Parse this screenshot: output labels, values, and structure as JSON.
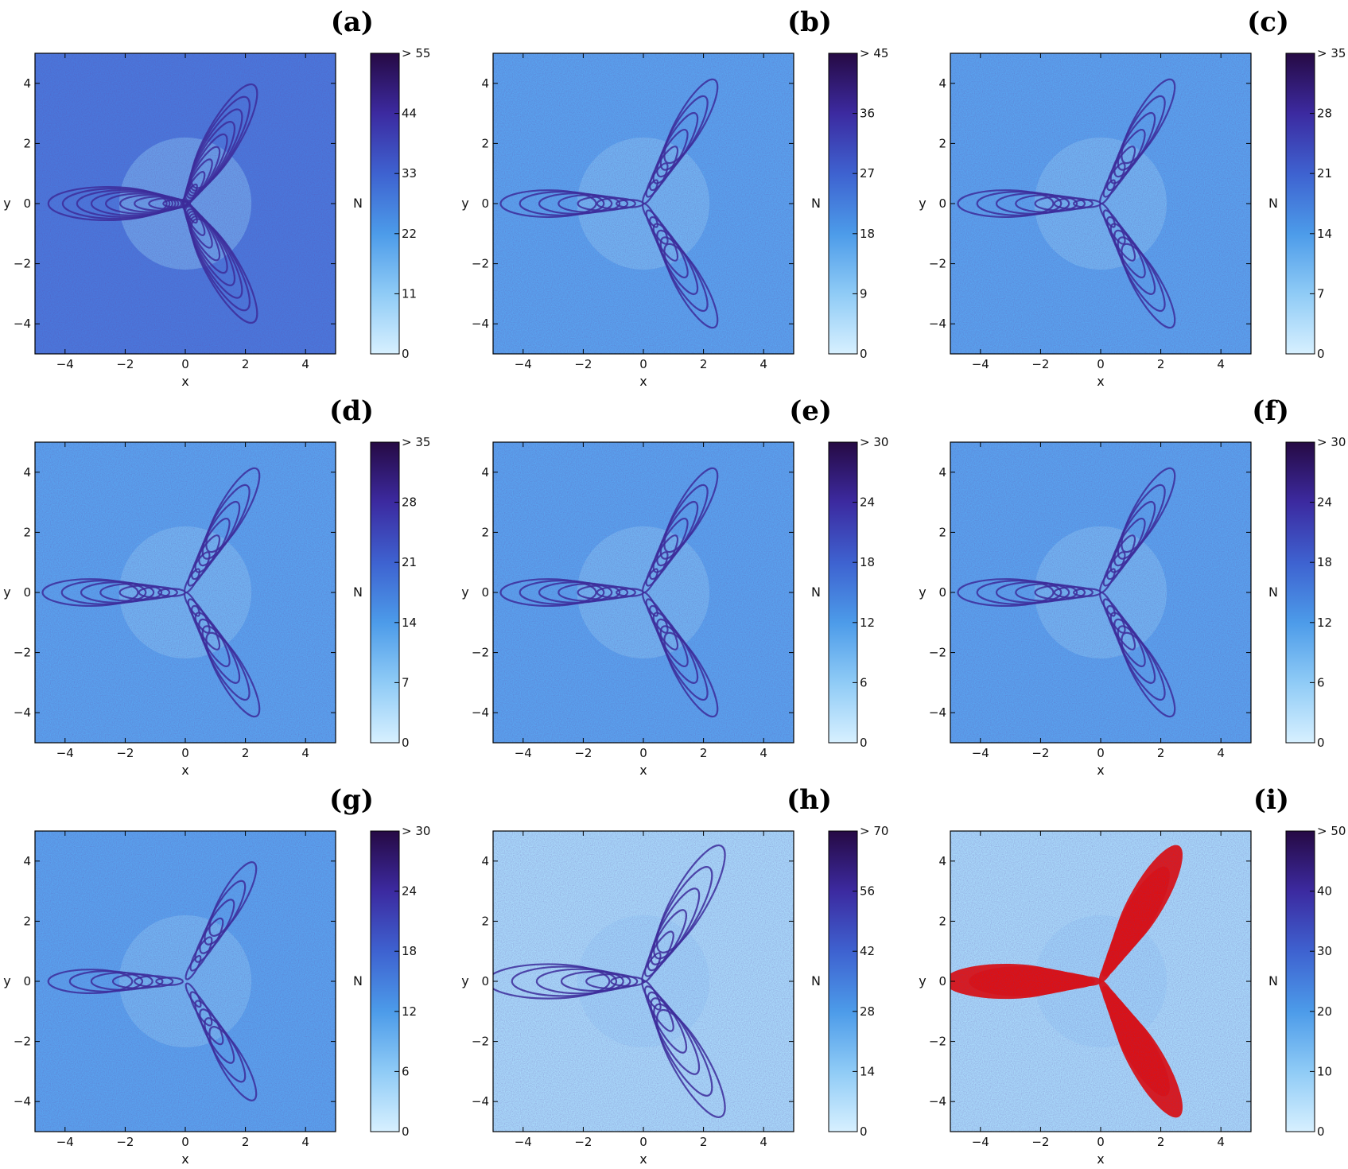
{
  "chart_data": [
    {
      "type": "heatmap",
      "panel": "(a)",
      "xlabel": "x",
      "ylabel": "y",
      "xlim": [
        -5,
        5
      ],
      "ylim": [
        -5,
        5
      ],
      "x_ticks": [
        -4,
        -2,
        0,
        2,
        4
      ],
      "y_ticks": [
        -4,
        -2,
        0,
        2,
        4
      ],
      "colorbar": {
        "label": "N",
        "ticks": [
          "0",
          "11",
          "22",
          "33",
          "44",
          "> 55"
        ],
        "range": [
          0,
          55
        ]
      },
      "symmetry_arms": 3,
      "pattern": "triangular fractal with many thin lobes",
      "red_overlay": false
    },
    {
      "type": "heatmap",
      "panel": "(b)",
      "xlabel": "x",
      "ylabel": "y",
      "xlim": [
        -5,
        5
      ],
      "ylim": [
        -5,
        5
      ],
      "x_ticks": [
        -4,
        -2,
        0,
        2,
        4
      ],
      "y_ticks": [
        -4,
        -2,
        0,
        2,
        4
      ],
      "colorbar": {
        "label": "N",
        "ticks": [
          "0",
          "9",
          "18",
          "27",
          "36",
          "> 45"
        ],
        "range": [
          0,
          45
        ]
      },
      "symmetry_arms": 3,
      "pattern": "three spiral arms of lobes",
      "red_overlay": false
    },
    {
      "type": "heatmap",
      "panel": "(c)",
      "xlabel": "x",
      "ylabel": "y",
      "xlim": [
        -5,
        5
      ],
      "ylim": [
        -5,
        5
      ],
      "x_ticks": [
        -4,
        -2,
        0,
        2,
        4
      ],
      "y_ticks": [
        -4,
        -2,
        0,
        2,
        4
      ],
      "colorbar": {
        "label": "N",
        "ticks": [
          "0",
          "7",
          "14",
          "21",
          "28",
          "> 35"
        ],
        "range": [
          0,
          35
        ]
      },
      "symmetry_arms": 3,
      "pattern": "three arms of wavy lobes",
      "red_overlay": false
    },
    {
      "type": "heatmap",
      "panel": "(d)",
      "xlabel": "x",
      "ylabel": "y",
      "xlim": [
        -5,
        5
      ],
      "ylim": [
        -5,
        5
      ],
      "x_ticks": [
        -4,
        -2,
        0,
        2,
        4
      ],
      "y_ticks": [
        -4,
        -2,
        0,
        2,
        4
      ],
      "colorbar": {
        "label": "N",
        "ticks": [
          "0",
          "7",
          "14",
          "21",
          "28",
          "> 35"
        ],
        "range": [
          0,
          35
        ]
      },
      "symmetry_arms": 3,
      "pattern": "three arms of thin wavy curves",
      "red_overlay": false
    },
    {
      "type": "heatmap",
      "panel": "(e)",
      "xlabel": "x",
      "ylabel": "y",
      "xlim": [
        -5,
        5
      ],
      "ylim": [
        -5,
        5
      ],
      "x_ticks": [
        -4,
        -2,
        0,
        2,
        4
      ],
      "y_ticks": [
        -4,
        -2,
        0,
        2,
        4
      ],
      "colorbar": {
        "label": "N",
        "ticks": [
          "0",
          "6",
          "12",
          "18",
          "24",
          "> 30"
        ],
        "range": [
          0,
          30
        ]
      },
      "symmetry_arms": 3,
      "pattern": "three arms of bulbous fractal lobes",
      "red_overlay": false
    },
    {
      "type": "heatmap",
      "panel": "(f)",
      "xlabel": "x",
      "ylabel": "y",
      "xlim": [
        -5,
        5
      ],
      "ylim": [
        -5,
        5
      ],
      "x_ticks": [
        -4,
        -2,
        0,
        2,
        4
      ],
      "y_ticks": [
        -4,
        -2,
        0,
        2,
        4
      ],
      "colorbar": {
        "label": "N",
        "ticks": [
          "0",
          "6",
          "12",
          "18",
          "24",
          "> 30"
        ],
        "range": [
          0,
          30
        ]
      },
      "symmetry_arms": 3,
      "pattern": "three arms of bulbous fractal lobes",
      "red_overlay": false
    },
    {
      "type": "heatmap",
      "panel": "(g)",
      "xlabel": "x",
      "ylabel": "y",
      "xlim": [
        -5,
        5
      ],
      "ylim": [
        -5,
        5
      ],
      "x_ticks": [
        -4,
        -2,
        0,
        2,
        4
      ],
      "y_ticks": [
        -4,
        -2,
        0,
        2,
        4
      ],
      "colorbar": {
        "label": "N",
        "ticks": [
          "0",
          "6",
          "12",
          "18",
          "24",
          "> 30"
        ],
        "range": [
          0,
          30
        ]
      },
      "symmetry_arms": 3,
      "pattern": "three arms of elongated fractal lobes",
      "red_overlay": false
    },
    {
      "type": "heatmap",
      "panel": "(h)",
      "xlabel": "x",
      "ylabel": "y",
      "xlim": [
        -5,
        5
      ],
      "ylim": [
        -5,
        5
      ],
      "x_ticks": [
        -4,
        -2,
        0,
        2,
        4
      ],
      "y_ticks": [
        -4,
        -2,
        0,
        2,
        4
      ],
      "colorbar": {
        "label": "N",
        "ticks": [
          "0",
          "14",
          "28",
          "42",
          "56",
          "> 70"
        ],
        "range": [
          0,
          70
        ]
      },
      "symmetry_arms": 3,
      "pattern": "large speckled crescent lobes",
      "red_overlay": false
    },
    {
      "type": "heatmap",
      "panel": "(i)",
      "xlabel": "x",
      "ylabel": "y",
      "xlim": [
        -5,
        5
      ],
      "ylim": [
        -5,
        5
      ],
      "x_ticks": [
        -4,
        -2,
        0,
        2,
        4
      ],
      "y_ticks": [
        -4,
        -2,
        0,
        2,
        4
      ],
      "colorbar": {
        "label": "N",
        "ticks": [
          "0",
          "10",
          "20",
          "30",
          "40",
          "> 50"
        ],
        "range": [
          0,
          50
        ]
      },
      "symmetry_arms": 3,
      "pattern": "large lobes mostly red (non-converging)",
      "red_overlay": true
    }
  ],
  "colors": {
    "scale_low": "#d7f0ff",
    "scale_mid_low": "#6fb8f2",
    "scale_mid": "#3d8de6",
    "scale_mid_high": "#3d44b8",
    "scale_high": "#2a0a4a",
    "red_region": "#e01010",
    "background_a": "#4a78dc",
    "background_h": "#a8d8fa",
    "background_default": "#5aa2ee"
  }
}
